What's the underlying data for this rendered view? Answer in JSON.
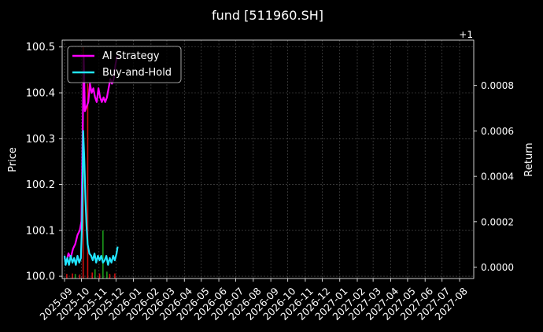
{
  "chart_data": {
    "type": "line",
    "title": "fund [511960.SH]",
    "xlabel": "",
    "ylabel_left": "Price",
    "ylabel_right": "Return",
    "right_offset_label": "+1",
    "x_tick_labels": [
      "2025-09",
      "2025-10",
      "2025-11",
      "2025-12",
      "2026-01",
      "2026-02",
      "2026-03",
      "2026-04",
      "2026-05",
      "2026-06",
      "2026-07",
      "2026-08",
      "2026-09",
      "2026-10",
      "2026-11",
      "2026-12",
      "2027-01",
      "2027-02",
      "2027-03",
      "2027-04",
      "2027-05",
      "2027-06",
      "2027-07",
      "2027-08"
    ],
    "y_left_ticks": [
      "100.0",
      "100.1",
      "100.2",
      "100.3",
      "100.4",
      "100.5"
    ],
    "y_left_range": [
      99.995,
      100.515
    ],
    "y_right_ticks": [
      "0.0000",
      "0.0002",
      "0.0004",
      "0.0006",
      "0.0008"
    ],
    "y_right_range": [
      -5e-05,
      0.001
    ],
    "grid": true,
    "legend_placement": "top-left",
    "colors": {
      "ai_strategy": "#ff00ff",
      "buy_and_hold": "#22e5ff",
      "buy_bars": "#d01010",
      "sell_bars": "#1a9a1a",
      "grid": "#555555",
      "background": "#000000"
    },
    "series": [
      {
        "name": "AI Strategy",
        "axis": "left",
        "points": [
          [
            "2025-09-01",
            100.04
          ],
          [
            "2025-09-04",
            100.03
          ],
          [
            "2025-09-08",
            100.05
          ],
          [
            "2025-09-12",
            100.04
          ],
          [
            "2025-09-16",
            100.06
          ],
          [
            "2025-09-20",
            100.07
          ],
          [
            "2025-09-24",
            100.09
          ],
          [
            "2025-09-28",
            100.1
          ],
          [
            "2025-10-01",
            100.12
          ],
          [
            "2025-10-03",
            100.3
          ],
          [
            "2025-10-05",
            100.48
          ],
          [
            "2025-10-07",
            100.36
          ],
          [
            "2025-10-10",
            100.37
          ],
          [
            "2025-10-13",
            100.38
          ],
          [
            "2025-10-16",
            100.42
          ],
          [
            "2025-10-19",
            100.4
          ],
          [
            "2025-10-22",
            100.41
          ],
          [
            "2025-10-25",
            100.39
          ],
          [
            "2025-10-28",
            100.38
          ],
          [
            "2025-10-31",
            100.41
          ],
          [
            "2025-11-03",
            100.39
          ],
          [
            "2025-11-06",
            100.38
          ],
          [
            "2025-11-09",
            100.39
          ],
          [
            "2025-11-12",
            100.38
          ],
          [
            "2025-11-15",
            100.39
          ],
          [
            "2025-11-18",
            100.41
          ],
          [
            "2025-11-21",
            100.43
          ],
          [
            "2025-11-24",
            100.42
          ],
          [
            "2025-11-27",
            100.43
          ],
          [
            "2025-11-30",
            100.46
          ],
          [
            "2025-12-03",
            100.48
          ]
        ]
      },
      {
        "name": "Buy-and-Hold",
        "axis": "right",
        "points": [
          [
            "2025-09-01",
            5e-05
          ],
          [
            "2025-09-03",
            1e-05
          ],
          [
            "2025-09-06",
            4e-05
          ],
          [
            "2025-09-09",
            1e-05
          ],
          [
            "2025-09-12",
            5e-05
          ],
          [
            "2025-09-15",
            2e-05
          ],
          [
            "2025-09-18",
            4e-05
          ],
          [
            "2025-09-21",
            1e-05
          ],
          [
            "2025-09-24",
            5e-05
          ],
          [
            "2025-09-27",
            2e-05
          ],
          [
            "2025-09-30",
            4e-05
          ],
          [
            "2025-10-02",
            0.0002
          ],
          [
            "2025-10-04",
            0.0006
          ],
          [
            "2025-10-06",
            0.00048
          ],
          [
            "2025-10-08",
            0.0003
          ],
          [
            "2025-10-10",
            0.00018
          ],
          [
            "2025-10-12",
            0.0001
          ],
          [
            "2025-10-15",
            6e-05
          ],
          [
            "2025-10-18",
            5e-05
          ],
          [
            "2025-10-21",
            3e-05
          ],
          [
            "2025-10-24",
            6e-05
          ],
          [
            "2025-10-27",
            2e-05
          ],
          [
            "2025-10-30",
            5e-05
          ],
          [
            "2025-11-02",
            3e-05
          ],
          [
            "2025-11-05",
            5e-05
          ],
          [
            "2025-11-08",
            2e-05
          ],
          [
            "2025-11-11",
            3e-05
          ],
          [
            "2025-11-14",
            5e-05
          ],
          [
            "2025-11-17",
            1e-05
          ],
          [
            "2025-11-20",
            4e-05
          ],
          [
            "2025-11-23",
            2e-05
          ],
          [
            "2025-11-26",
            5e-05
          ],
          [
            "2025-11-29",
            3e-05
          ],
          [
            "2025-12-02",
            6e-05
          ],
          [
            "2025-12-04",
            9e-05
          ]
        ]
      }
    ],
    "buy_signals": [
      [
        "2025-09-05",
        100.005
      ],
      [
        "2025-09-15",
        100.006
      ],
      [
        "2025-09-28",
        100.004
      ],
      [
        "2025-10-04",
        100.5
      ],
      [
        "2025-10-12",
        100.42
      ],
      [
        "2025-10-20",
        100.008
      ],
      [
        "2025-11-02",
        100.006
      ],
      [
        "2025-11-20",
        100.005
      ],
      [
        "2025-11-29",
        100.006
      ]
    ],
    "sell_signals": [
      [
        "2025-09-20",
        100.005
      ],
      [
        "2025-10-25",
        100.015
      ],
      [
        "2025-11-08",
        100.1
      ],
      [
        "2025-11-15",
        100.01
      ]
    ]
  }
}
